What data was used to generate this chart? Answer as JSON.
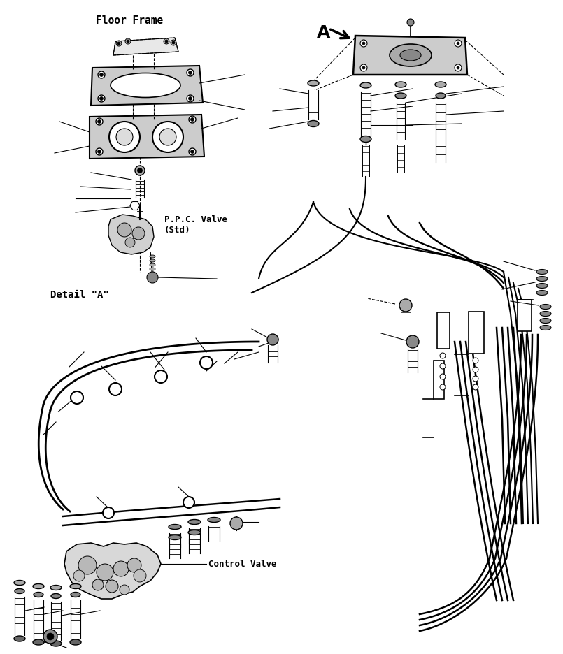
{
  "background_color": "#ffffff",
  "line_color": "#000000",
  "text_color": "#000000",
  "labels": {
    "floor_frame": "Floor Frame",
    "ppc_valve": "P.P.C. Valve\n(Std)",
    "detail_a": "Detail \"A\"",
    "control_valve": "Control Valve",
    "A_marker": "A"
  },
  "figsize": [
    8.05,
    9.37
  ],
  "dpi": 100,
  "xlim": [
    0,
    805
  ],
  "ylim": [
    0,
    937
  ]
}
